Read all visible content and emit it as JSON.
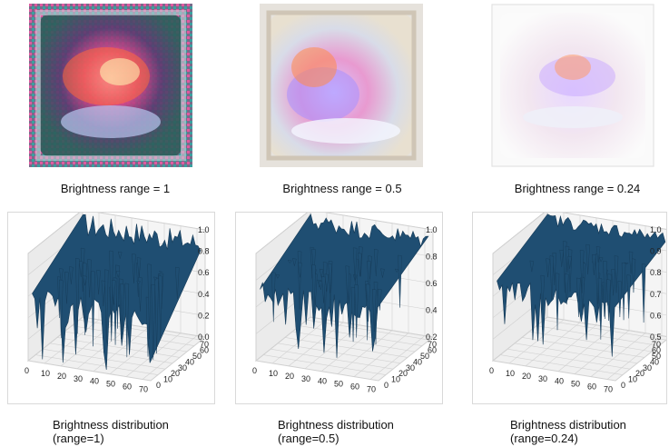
{
  "panels": [
    {
      "image_caption": "Brightness range = 1",
      "dist_caption_line1": "Brightness distribution",
      "dist_caption_line2": "(range=1)",
      "z_ticks": [
        "1.0",
        "0.8",
        "0.6",
        "0.4",
        "0.2",
        "0.0"
      ],
      "x_ticks": [
        "0",
        "10",
        "20",
        "30",
        "40",
        "50",
        "60",
        "70"
      ],
      "y_ticks": [
        "0",
        "10",
        "20",
        "30",
        "40",
        "50",
        "60",
        "70"
      ],
      "brightness_range": 1
    },
    {
      "image_caption": "Brightness range = 0.5",
      "dist_caption_line1": "Brightness distribution",
      "dist_caption_line2": "(range=0.5)",
      "z_ticks": [
        "1.0",
        "0.8",
        "0.6",
        "0.4",
        "0.2"
      ],
      "x_ticks": [
        "0",
        "10",
        "20",
        "30",
        "40",
        "50",
        "60",
        "70"
      ],
      "y_ticks": [
        "0",
        "10",
        "20",
        "30",
        "40",
        "50",
        "60",
        "70"
      ],
      "brightness_range": 0.5
    },
    {
      "image_caption": "Brightness range = 0.24",
      "dist_caption_line1": "Brightness distribution",
      "dist_caption_line2": "(range=0.24)",
      "z_ticks": [
        "1.0",
        "0.9",
        "0.8",
        "0.7",
        "0.6",
        "0.5"
      ],
      "x_ticks": [
        "0",
        "10",
        "20",
        "30",
        "40",
        "50",
        "60",
        "70"
      ],
      "y_ticks": [
        "0",
        "10",
        "20",
        "30",
        "40",
        "50",
        "60",
        "70"
      ],
      "brightness_range": 0.24
    }
  ],
  "colors": {
    "surface": "#1f4e72",
    "surface_dark": "#153a57",
    "pane": "#f0f0f0",
    "grid": "#d0d0d0"
  }
}
